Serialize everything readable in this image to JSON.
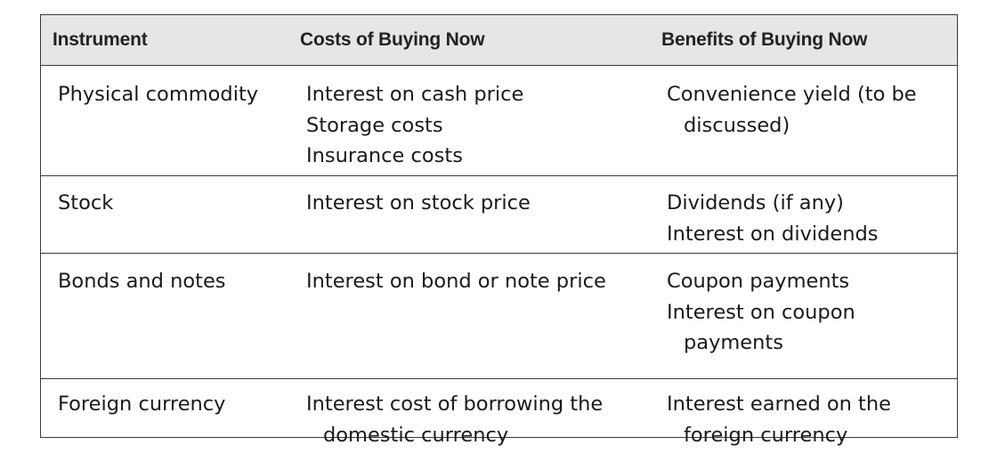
{
  "table": {
    "headers": {
      "instrument": "Instrument",
      "costs": "Costs of Buying Now",
      "benefits": "Benefits of Buying Now"
    },
    "rows": [
      {
        "instrument": "Physical commodity",
        "costs": [
          "Interest on cash price",
          "Storage costs",
          "Insurance costs"
        ],
        "benefits": [
          "Convenience yield (to be",
          "discussed)"
        ]
      },
      {
        "instrument": "Stock",
        "costs": [
          "Interest on stock price"
        ],
        "benefits": [
          "Dividends (if any)",
          "Interest on dividends"
        ]
      },
      {
        "instrument": "Bonds and notes",
        "costs": [
          "Interest on bond or note price"
        ],
        "benefits": [
          "Coupon payments",
          "Interest on coupon",
          "payments"
        ]
      },
      {
        "instrument": "Foreign currency",
        "costs": [
          "Interest cost of borrowing the",
          "domestic currency"
        ],
        "benefits": [
          "Interest earned on the",
          "foreign currency"
        ]
      }
    ]
  }
}
